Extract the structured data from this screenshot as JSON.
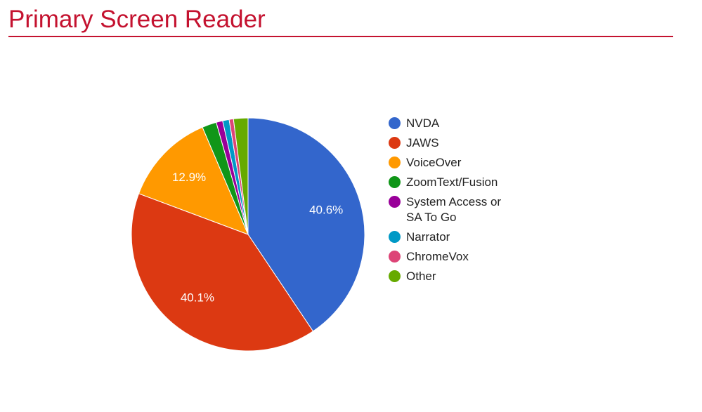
{
  "chart_data": {
    "type": "pie",
    "title": "Primary Screen Reader",
    "categories": [
      "NVDA",
      "JAWS",
      "VoiceOver",
      "ZoomText/Fusion",
      "System Access or SA To Go",
      "Narrator",
      "ChromeVox",
      "Other"
    ],
    "values": [
      40.6,
      40.1,
      12.9,
      2.0,
      0.9,
      0.9,
      0.6,
      2.0
    ],
    "value_labels": [
      "40.6%",
      "40.1%",
      "12.9%",
      null,
      null,
      null,
      null,
      null
    ],
    "colors": [
      "#3366cc",
      "#dc3912",
      "#ff9900",
      "#109618",
      "#990099",
      "#0099c6",
      "#dd4477",
      "#66aa00"
    ],
    "legend": "right"
  }
}
